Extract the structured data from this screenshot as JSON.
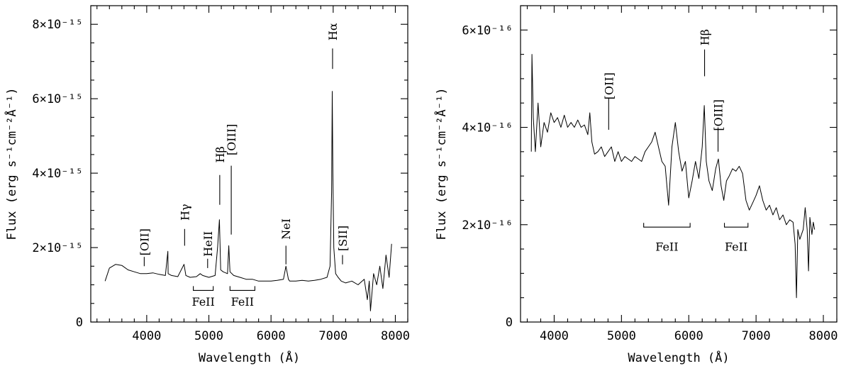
{
  "chart_data": [
    {
      "type": "line",
      "xlabel": "Wavelength (Å)",
      "ylabel": "Flux (erg s⁻¹cm⁻²Å⁻¹)",
      "xlim": [
        3100,
        8200
      ],
      "ylim": [
        0,
        8.5e-15
      ],
      "xticks": [
        {
          "value": 4000,
          "label": "4000"
        },
        {
          "value": 5000,
          "label": "5000"
        },
        {
          "value": 6000,
          "label": "6000"
        },
        {
          "value": 7000,
          "label": "7000"
        },
        {
          "value": 8000,
          "label": "8000"
        }
      ],
      "yticks": [
        {
          "value": 0,
          "label": "0"
        },
        {
          "value": 2e-15,
          "label": "2×10⁻¹⁵"
        },
        {
          "value": 4e-15,
          "label": "4×10⁻¹⁵"
        },
        {
          "value": 6e-15,
          "label": "6×10⁻¹⁵"
        },
        {
          "value": 8e-15,
          "label": "8×10⁻¹⁵"
        }
      ],
      "series": [
        {
          "x": [
            3330,
            3400,
            3500,
            3600,
            3700,
            3800,
            3900,
            4000,
            4100,
            4200,
            4300,
            4340,
            4345,
            4400,
            4500,
            4600,
            4630,
            4700,
            4800,
            4861,
            4900,
            5000,
            5100,
            5140,
            5170,
            5190,
            5230,
            5300,
            5320,
            5340,
            5400,
            5500,
            5600,
            5700,
            5800,
            5900,
            6000,
            6100,
            6200,
            6240,
            6280,
            6300,
            6400,
            6500,
            6600,
            6700,
            6800,
            6900,
            6950,
            6975,
            6985,
            6995,
            7010,
            7040,
            7080,
            7130,
            7200,
            7300,
            7400,
            7500,
            7550,
            7580,
            7600,
            7650,
            7700,
            7750,
            7800,
            7850,
            7900,
            7940
          ],
          "y": [
            1.1e-15,
            1.45e-15,
            1.55e-15,
            1.52e-15,
            1.4e-15,
            1.35e-15,
            1.3e-15,
            1.3e-15,
            1.32e-15,
            1.28e-15,
            1.25e-15,
            1.9e-15,
            1.3e-15,
            1.25e-15,
            1.22e-15,
            1.55e-15,
            1.25e-15,
            1.2e-15,
            1.22e-15,
            1.3e-15,
            1.25e-15,
            1.2e-15,
            1.25e-15,
            2e-15,
            2.75e-15,
            1.4e-15,
            1.35e-15,
            1.3e-15,
            2.05e-15,
            1.35e-15,
            1.25e-15,
            1.2e-15,
            1.15e-15,
            1.15e-15,
            1.1e-15,
            1.1e-15,
            1.1e-15,
            1.12e-15,
            1.15e-15,
            1.5e-15,
            1.15e-15,
            1.1e-15,
            1.1e-15,
            1.12e-15,
            1.1e-15,
            1.12e-15,
            1.15e-15,
            1.2e-15,
            1.5e-15,
            3.5e-15,
            6.2e-15,
            4e-15,
            2e-15,
            1.3e-15,
            1.2e-15,
            1.1e-15,
            1.05e-15,
            1.1e-15,
            1e-15,
            1.15e-15,
            6e-16,
            1.1e-15,
            3e-16,
            1.3e-15,
            1e-15,
            1.5e-15,
            9e-16,
            1.8e-15,
            1.2e-15,
            2.1e-15
          ]
        }
      ],
      "annotations": [
        {
          "text": "[OII]",
          "x": 3960,
          "line_y": [
            1.5e-15,
            1.75e-15
          ],
          "text_y": 2.15e-15
        },
        {
          "text": "Hγ",
          "x": 4610,
          "line_y": [
            2.05e-15,
            2.5e-15
          ],
          "text_y": 2.95e-15
        },
        {
          "text": "HeII",
          "x": 4980,
          "line_y": [
            1.45e-15,
            1.7e-15
          ],
          "text_y": 2.1e-15
        },
        {
          "text": "Hβ",
          "x": 5175,
          "line_y": [
            3.15e-15,
            3.95e-15
          ],
          "text_y": 4.5e-15
        },
        {
          "text": "[OIII]",
          "x": 5360,
          "line_y": [
            2.35e-15,
            4.2e-15
          ],
          "text_y": 4.9e-15
        },
        {
          "text": "NeI",
          "x": 6240,
          "line_y": [
            1.55e-15,
            2.05e-15
          ],
          "text_y": 2.5e-15
        },
        {
          "text": "Hα",
          "x": 6990,
          "line_y": [
            6.8e-15,
            7.35e-15
          ],
          "text_y": 7.8e-15
        },
        {
          "text": "[SII]",
          "x": 7150,
          "line_y": [
            1.55e-15,
            1.8e-15
          ],
          "text_y": 2.25e-15
        }
      ],
      "brackets": [
        {
          "text": "FeII",
          "x1": 4750,
          "x2": 5070,
          "y": 8.5e-16,
          "text_y": 5.5e-16
        },
        {
          "text": "FeII",
          "x1": 5340,
          "x2": 5740,
          "y": 8.5e-16,
          "text_y": 5.5e-16
        }
      ]
    },
    {
      "type": "line",
      "xlabel": "Wavelength (Å)",
      "ylabel": "Flux (erg s⁻¹cm⁻²Å⁻¹)",
      "xlim": [
        3500,
        8200
      ],
      "ylim": [
        0,
        6.5e-16
      ],
      "xticks": [
        {
          "value": 4000,
          "label": "4000"
        },
        {
          "value": 5000,
          "label": "5000"
        },
        {
          "value": 6000,
          "label": "6000"
        },
        {
          "value": 7000,
          "label": "7000"
        },
        {
          "value": 8000,
          "label": "8000"
        }
      ],
      "yticks": [
        {
          "value": 0,
          "label": "0"
        },
        {
          "value": 2e-16,
          "label": "2×10⁻¹⁶"
        },
        {
          "value": 4e-16,
          "label": "4×10⁻¹⁶"
        },
        {
          "value": 6e-16,
          "label": "6×10⁻¹⁶"
        }
      ],
      "series": [
        {
          "x": [
            3660,
            3670,
            3690,
            3720,
            3760,
            3800,
            3850,
            3900,
            3950,
            4000,
            4050,
            4100,
            4150,
            4200,
            4250,
            4300,
            4350,
            4400,
            4450,
            4500,
            4530,
            4560,
            4600,
            4650,
            4700,
            4750,
            4800,
            4850,
            4900,
            4950,
            5000,
            5050,
            5100,
            5150,
            5200,
            5250,
            5300,
            5350,
            5400,
            5450,
            5500,
            5550,
            5600,
            5650,
            5700,
            5750,
            5800,
            5850,
            5900,
            5950,
            6000,
            6050,
            6100,
            6150,
            6200,
            6230,
            6260,
            6300,
            6350,
            6400,
            6440,
            6480,
            6520,
            6560,
            6600,
            6650,
            6700,
            6750,
            6800,
            6850,
            6900,
            6950,
            7000,
            7050,
            7100,
            7150,
            7200,
            7250,
            7300,
            7350,
            7400,
            7450,
            7500,
            7550,
            7580,
            7600,
            7620,
            7650,
            7700,
            7730,
            7760,
            7780,
            7800,
            7830,
            7850,
            7870
          ],
          "y": [
            3.5e-16,
            5.5e-16,
            4.2e-16,
            3.5e-16,
            4.5e-16,
            3.6e-16,
            4.1e-16,
            3.9e-16,
            4.3e-16,
            4.1e-16,
            4.2e-16,
            4e-16,
            4.25e-16,
            4e-16,
            4.1e-16,
            4e-16,
            4.15e-16,
            4e-16,
            4.05e-16,
            3.85e-16,
            4.3e-16,
            3.7e-16,
            3.45e-16,
            3.5e-16,
            3.6e-16,
            3.4e-16,
            3.5e-16,
            3.6e-16,
            3.3e-16,
            3.5e-16,
            3.3e-16,
            3.4e-16,
            3.35e-16,
            3.3e-16,
            3.4e-16,
            3.35e-16,
            3.3e-16,
            3.5e-16,
            3.6e-16,
            3.7e-16,
            3.9e-16,
            3.6e-16,
            3.3e-16,
            3.2e-16,
            2.4e-16,
            3.6e-16,
            4.1e-16,
            3.5e-16,
            3.1e-16,
            3.3e-16,
            2.55e-16,
            2.9e-16,
            3.3e-16,
            2.95e-16,
            3.6e-16,
            4.45e-16,
            3.3e-16,
            2.9e-16,
            2.7e-16,
            3.15e-16,
            3.35e-16,
            2.8e-16,
            2.5e-16,
            2.9e-16,
            3e-16,
            3.15e-16,
            3.1e-16,
            3.2e-16,
            3.05e-16,
            2.5e-16,
            2.3e-16,
            2.45e-16,
            2.6e-16,
            2.8e-16,
            2.5e-16,
            2.3e-16,
            2.4e-16,
            2.2e-16,
            2.35e-16,
            2.1e-16,
            2.2e-16,
            2e-16,
            2.1e-16,
            2.05e-16,
            1.6e-16,
            5e-17,
            1.9e-16,
            1.7e-16,
            1.9e-16,
            2.35e-16,
            1.9e-16,
            1.05e-16,
            2.15e-16,
            1.8e-16,
            2.05e-16,
            1.9e-16
          ]
        }
      ],
      "annotations": [
        {
          "text": "[OII]",
          "x": 4810,
          "line_y": [
            3.95e-16,
            4.6e-16
          ],
          "text_y": 4.85e-16
        },
        {
          "text": "Hβ",
          "x": 6235,
          "line_y": [
            5.05e-16,
            5.6e-16
          ],
          "text_y": 5.85e-16
        },
        {
          "text": "[OIII]",
          "x": 6435,
          "line_y": [
            3.5e-16,
            4e-16
          ],
          "text_y": 4.25e-16
        }
      ],
      "brackets": [
        {
          "text": "FeII",
          "x1": 5330,
          "x2": 6020,
          "y": 1.95e-16,
          "text_y": 1.55e-16
        },
        {
          "text": "FeII",
          "x1": 6530,
          "x2": 6880,
          "y": 1.95e-16,
          "text_y": 1.55e-16
        }
      ]
    }
  ]
}
